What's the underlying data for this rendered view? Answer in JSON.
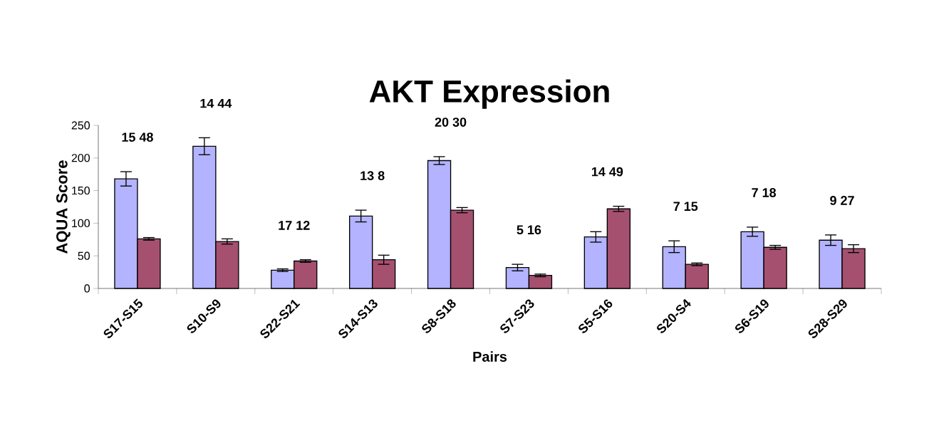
{
  "chart_data": {
    "type": "bar",
    "title": "AKT Expression",
    "xlabel": "Pairs",
    "ylabel": "AQUA Score",
    "categories": [
      "S17-S15",
      "S10-S9",
      "S22-S21",
      "S14-S13",
      "S8-S18",
      "S7-S23",
      "S5-S16",
      "S20-S4",
      "S6-S19",
      "S28-S29"
    ],
    "series": [
      {
        "color": "#b3b3ff",
        "values": [
          168,
          218,
          28,
          111,
          196,
          32,
          79,
          64,
          87,
          74
        ],
        "errors": [
          11,
          13,
          2,
          9,
          6,
          5,
          8,
          9,
          7,
          8
        ]
      },
      {
        "color": "#a6506f",
        "values": [
          76,
          72,
          42,
          44,
          120,
          20,
          122,
          37,
          63,
          61
        ],
        "errors": [
          2,
          4,
          2,
          7,
          4,
          2,
          4,
          2,
          3,
          6
        ]
      }
    ],
    "ylim": [
      0,
      250
    ],
    "yticks": [
      0,
      50,
      100,
      150,
      200,
      250
    ],
    "grid": false,
    "annotations": [
      "15 48",
      "14 44",
      "17 12",
      "13 8",
      "20 30",
      "5 16",
      "14 49",
      "7 15",
      "7 18",
      "9 27"
    ]
  }
}
